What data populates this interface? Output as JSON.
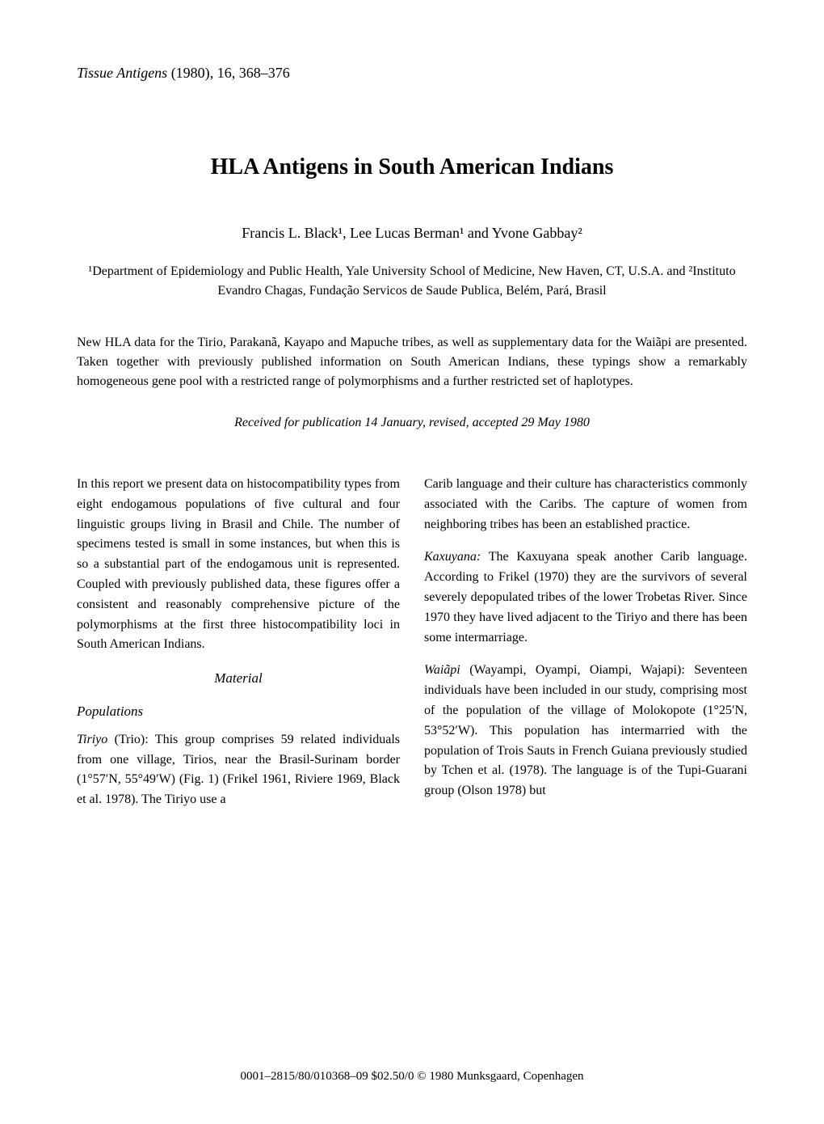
{
  "journal": {
    "name": "Tissue Antigens",
    "year": "(1980)",
    "volume": "16",
    "pages": "368–376"
  },
  "title": "HLA Antigens in South American Indians",
  "authors": "Francis L. Black¹, Lee Lucas Berman¹ and Yvone Gabbay²",
  "affiliations": "¹Department of Epidemiology and Public Health, Yale University School of Medicine, New Haven, CT, U.S.A. and ²Instituto Evandro Chagas, Fundação Servicos de Saude Publica, Belém, Pará, Brasil",
  "abstract": "New HLA data for the Tirio, Parakanã, Kayapo and Mapuche tribes, as well as supplementary data for the Waiãpi are presented. Taken together with previously published information on South American Indians, these typings show a remarkably homogeneous gene pool with a restricted range of polymorphisms and a further restricted set of haplotypes.",
  "received": "Received for publication 14 January, revised, accepted 29 May 1980",
  "leftColumn": {
    "intro": "In this report we present data on histocompatibility types from eight endogamous populations of five cultural and four linguistic groups living in Brasil and Chile. The number of specimens tested is small in some instances, but when this is so a substantial part of the endogamous unit is represented. Coupled with previously published data, these figures offer a consistent and reasonably comprehensive picture of the polymorphisms at the first three histocompatibility loci in South American Indians.",
    "materialHeading": "Material",
    "populationsHeading": "Populations",
    "tiriyoLabel": "Tiriyo",
    "tiriyoText": " (Trio): This group comprises 59 related individuals from one village, Tirios, near the Brasil-Surinam border (1°57′N, 55°49′W) (Fig. 1) (Frikel 1961, Riviere 1969, Black et al. 1978). The Tiriyo use a"
  },
  "rightColumn": {
    "caribCont": "Carib language and their culture has characteristics commonly associated with the Caribs. The capture of women from neighboring tribes has been an established practice.",
    "kaxuyanaLabel": "Kaxuyana:",
    "kaxuyanaText": " The Kaxuyana speak another Carib language. According to Frikel (1970) they are the survivors of several severely depopulated tribes of the lower Trobetas River. Since 1970 they have lived adjacent to the Tiriyo and there has been some intermarriage.",
    "waiapiLabel": "Waiãpi",
    "waiapiText": " (Wayampi, Oyampi, Oiampi, Wajapi): Seventeen individuals have been included in our study, comprising most of the population of the village of Molokopote (1°25′N, 53°52′W). This population has intermarried with the population of Trois Sauts in French Guiana previously studied by Tchen et al. (1978). The language is of the Tupi-Guarani group (Olson 1978) but"
  },
  "footer": "0001–2815/80/010368–09 $02.50/0 © 1980 Munksgaard, Copenhagen"
}
